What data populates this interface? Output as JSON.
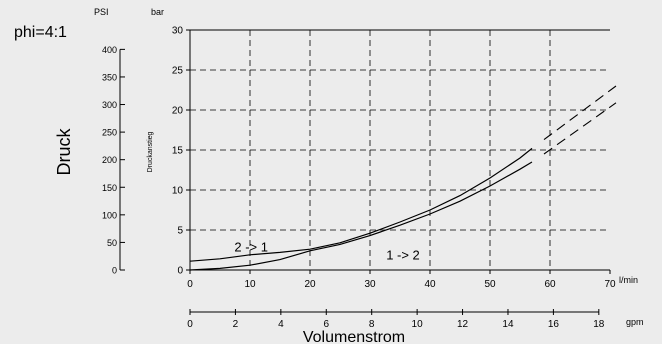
{
  "chart_data": {
    "type": "line",
    "ratio_label": "phi=4:1",
    "ylabel_left": "Druck",
    "ylabel_inner": "Druckanstieg",
    "xlabel": "Volumenstrom",
    "psi_unit": "PSI",
    "bar_unit": "bar",
    "lmin_unit": "l/min",
    "gpm_unit": "gpm",
    "xlim": [
      0,
      70
    ],
    "ylim": [
      0,
      30
    ],
    "grid": "dashed",
    "bar_ticks": [
      "0",
      "5",
      "10",
      "15",
      "20",
      "25",
      "30"
    ],
    "psi_ticks": [
      "0",
      "50",
      "100",
      "150",
      "200",
      "250",
      "300",
      "350",
      "400"
    ],
    "lmin_ticks": [
      "0",
      "10",
      "20",
      "30",
      "40",
      "50",
      "60",
      "70"
    ],
    "gpm_ticks": [
      "0",
      "2",
      "4",
      "6",
      "8",
      "10",
      "12",
      "14",
      "16",
      "18"
    ],
    "series": [
      {
        "label": "2 -> 1",
        "x": [
          0,
          5,
          10,
          15,
          20,
          25,
          30,
          35,
          40,
          45,
          50,
          55,
          57
        ],
        "y": [
          1.1,
          1.4,
          1.9,
          2.2,
          2.6,
          3.4,
          4.6,
          6.0,
          7.5,
          9.3,
          11.5,
          14.0,
          15.2
        ],
        "extension": {
          "x": [
            59,
            71
          ],
          "y": [
            16.3,
            23.0
          ]
        }
      },
      {
        "label": "1 -> 2",
        "x": [
          0,
          5,
          10,
          15,
          20,
          25,
          30,
          35,
          40,
          45,
          50,
          55,
          57
        ],
        "y": [
          0.0,
          0.2,
          0.6,
          1.3,
          2.4,
          3.2,
          4.3,
          5.6,
          7.0,
          8.6,
          10.5,
          12.6,
          13.5
        ],
        "extension": {
          "x": [
            59,
            71
          ],
          "y": [
            14.5,
            20.9
          ]
        }
      }
    ]
  }
}
